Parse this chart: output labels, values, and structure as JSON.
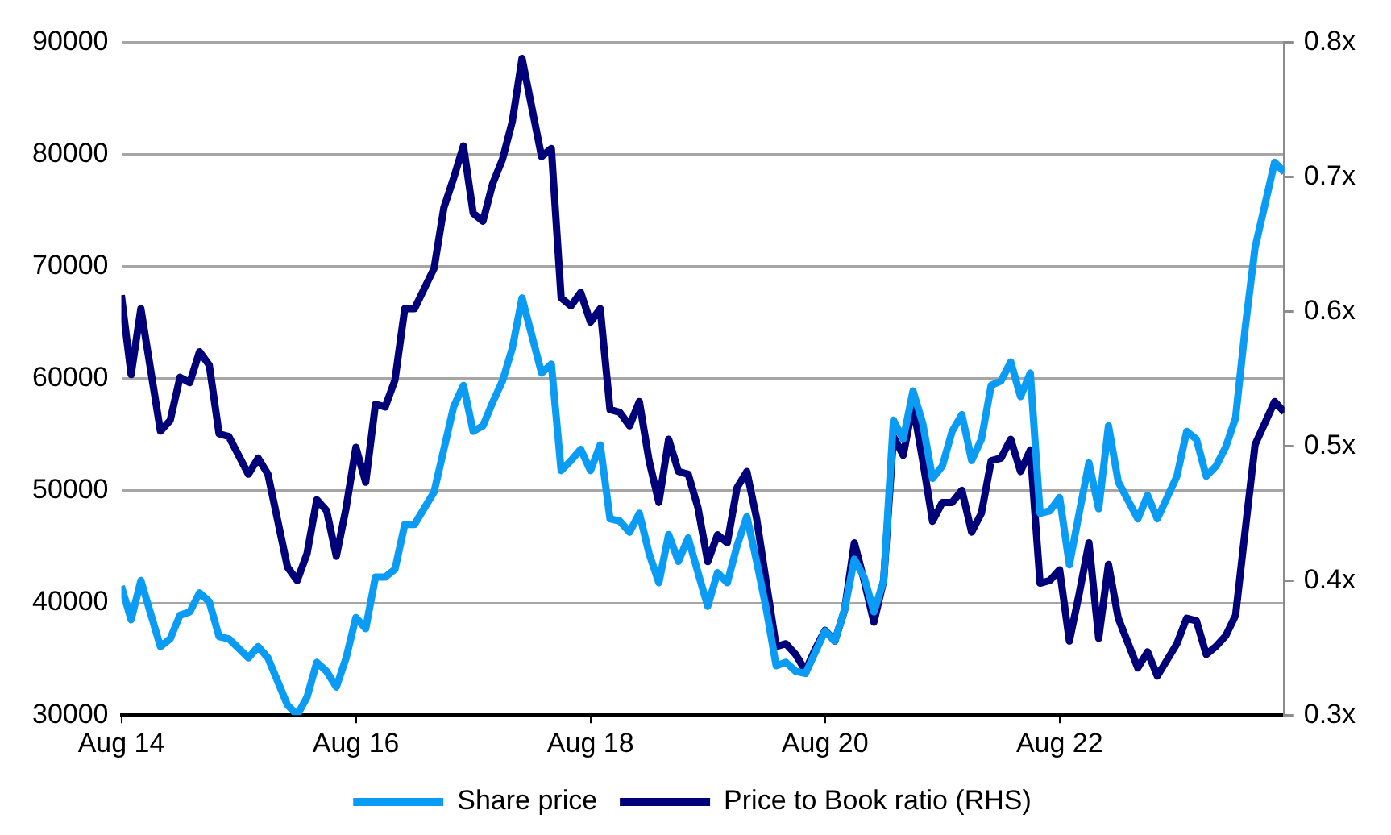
{
  "chart_data": {
    "type": "line",
    "x": [
      "2014-08",
      "2014-09",
      "2014-10",
      "2014-12",
      "2015-01",
      "2015-02",
      "2015-03",
      "2015-04",
      "2015-05",
      "2015-06",
      "2015-07",
      "2015-09",
      "2015-10",
      "2015-11",
      "2016-01",
      "2016-02",
      "2016-03",
      "2016-04",
      "2016-05",
      "2016-06",
      "2016-07",
      "2016-08",
      "2016-09",
      "2016-10",
      "2016-11",
      "2016-12",
      "2017-01",
      "2017-02",
      "2017-04",
      "2017-05",
      "2017-06",
      "2017-07",
      "2017-08",
      "2017-09",
      "2017-10",
      "2017-11",
      "2017-12",
      "2018-01",
      "2018-03",
      "2018-04",
      "2018-05",
      "2018-06",
      "2018-07",
      "2018-08",
      "2018-09",
      "2018-10",
      "2018-11",
      "2018-12",
      "2019-01",
      "2019-02",
      "2019-03",
      "2019-04",
      "2019-05",
      "2019-06",
      "2019-07",
      "2019-08",
      "2019-09",
      "2019-10",
      "2019-11",
      "2019-12",
      "2020-01",
      "2020-02",
      "2020-03",
      "2020-04",
      "2020-05",
      "2020-06",
      "2020-07",
      "2020-08",
      "2020-09",
      "2020-10",
      "2020-11",
      "2020-12",
      "2021-01",
      "2021-02",
      "2021-03",
      "2021-04",
      "2021-05",
      "2021-06",
      "2021-07",
      "2021-08",
      "2021-09",
      "2021-10",
      "2021-11",
      "2021-12",
      "2022-01",
      "2022-02",
      "2022-03",
      "2022-04",
      "2022-05",
      "2022-06",
      "2022-07",
      "2022-08",
      "2022-09",
      "2022-10",
      "2022-11",
      "2022-12",
      "2023-01",
      "2023-02",
      "2023-04",
      "2023-05",
      "2023-06",
      "2023-08",
      "2023-09",
      "2023-10",
      "2023-11",
      "2023-12",
      "2024-01",
      "2024-02",
      "2024-03",
      "2024-04",
      "2024-06",
      "2024-07"
    ],
    "series": [
      {
        "name": "Share price",
        "color": "#0a9bf5",
        "values": [
          41500,
          38500,
          42000,
          36100,
          36800,
          38900,
          39200,
          40900,
          40100,
          37000,
          36800,
          35100,
          36100,
          35100,
          30900,
          30000,
          31600,
          34700,
          33900,
          32500,
          35100,
          38700,
          37700,
          42300,
          42300,
          43000,
          47000,
          47000,
          49900,
          53700,
          57500,
          59400,
          55300,
          55800,
          57900,
          59800,
          62700,
          67200,
          60500,
          61300,
          51800,
          52700,
          53700,
          51800,
          54100,
          47500,
          47300,
          46300,
          48000,
          44400,
          41800,
          46100,
          43700,
          45800,
          42700,
          39700,
          42700,
          41800,
          45100,
          47700,
          43700,
          39400,
          34400,
          34700,
          33900,
          33700,
          35600,
          37500,
          36600,
          39400,
          43900,
          42300,
          39200,
          42000,
          56300,
          54600,
          58900,
          56000,
          51100,
          52200,
          55300,
          56800,
          52700,
          54600,
          59400,
          59800,
          61500,
          58400,
          60500,
          48000,
          48200,
          49400,
          43400,
          48000,
          52500,
          48400,
          55800,
          50800,
          47500,
          49600,
          47500,
          51300,
          55300,
          54600,
          51300,
          52200,
          53900,
          56500,
          64600,
          71700,
          79300,
          78400
        ]
      },
      {
        "name": "Price to Book ratio (RHS)",
        "color": "#000078",
        "axis": "y2",
        "values": [
          0.612,
          0.553,
          0.602,
          0.511,
          0.519,
          0.551,
          0.547,
          0.57,
          0.56,
          0.509,
          0.507,
          0.479,
          0.491,
          0.479,
          0.41,
          0.4,
          0.42,
          0.46,
          0.452,
          0.418,
          0.454,
          0.499,
          0.473,
          0.531,
          0.529,
          0.549,
          0.602,
          0.602,
          0.632,
          0.677,
          0.699,
          0.723,
          0.673,
          0.667,
          0.695,
          0.713,
          0.741,
          0.788,
          0.715,
          0.721,
          0.61,
          0.604,
          0.614,
          0.592,
          0.602,
          0.527,
          0.525,
          0.515,
          0.533,
          0.489,
          0.458,
          0.505,
          0.481,
          0.479,
          0.454,
          0.414,
          0.434,
          0.428,
          0.469,
          0.481,
          0.446,
          0.398,
          0.351,
          0.353,
          0.345,
          0.333,
          0.349,
          0.363,
          0.355,
          0.378,
          0.428,
          0.4,
          0.369,
          0.4,
          0.507,
          0.493,
          0.531,
          0.489,
          0.444,
          0.458,
          0.458,
          0.467,
          0.436,
          0.45,
          0.489,
          0.491,
          0.505,
          0.481,
          0.497,
          0.398,
          0.4,
          0.408,
          0.355,
          0.39,
          0.428,
          0.357,
          0.412,
          0.372,
          0.335,
          0.347,
          0.329,
          0.353,
          0.372,
          0.37,
          0.345,
          0.351,
          0.359,
          0.374,
          0.438,
          0.501,
          0.533,
          0.525
        ]
      }
    ],
    "xlim": [
      "2014-08",
      "2024-07"
    ],
    "xticks": [
      {
        "value": "2014-08",
        "label": "Aug 14"
      },
      {
        "value": "2016-08",
        "label": "Aug 16"
      },
      {
        "value": "2018-08",
        "label": "Aug 18"
      },
      {
        "value": "2020-08",
        "label": "Aug 20"
      },
      {
        "value": "2022-08",
        "label": "Aug 22"
      }
    ],
    "ylim": [
      30000,
      90000
    ],
    "yticks": [
      30000,
      40000,
      50000,
      60000,
      70000,
      80000,
      90000
    ],
    "y2lim": [
      0.3,
      0.8
    ],
    "y2ticks": [
      {
        "value": 0.3,
        "label": "0.3x"
      },
      {
        "value": 0.4,
        "label": "0.4x"
      },
      {
        "value": 0.5,
        "label": "0.5x"
      },
      {
        "value": 0.6,
        "label": "0.6x"
      },
      {
        "value": 0.7,
        "label": "0.7x"
      },
      {
        "value": 0.8,
        "label": "0.8x"
      }
    ],
    "grid": "y",
    "legend": "bottom"
  }
}
